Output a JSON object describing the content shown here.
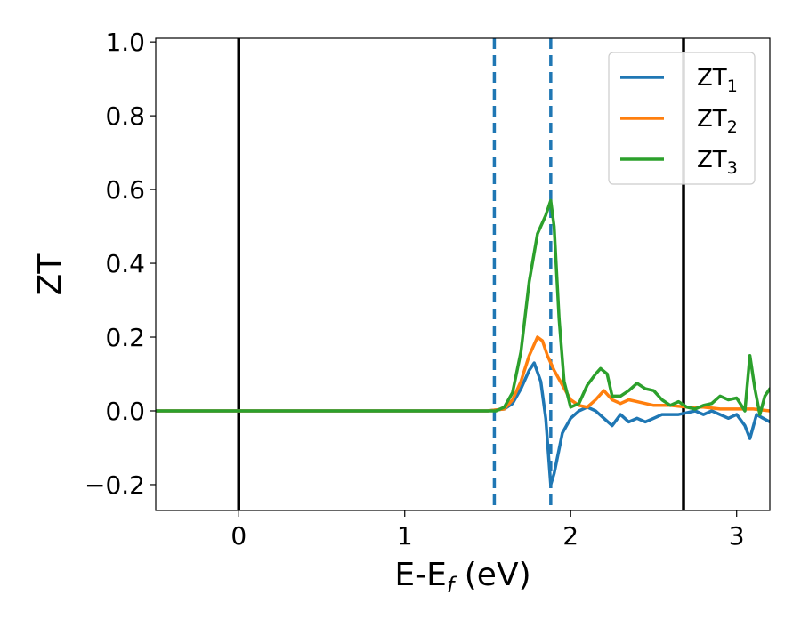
{
  "chart_data": {
    "type": "line",
    "title": "",
    "xlabel": "E-E",
    "xlabel_sub": "f",
    "xlabel_unit": " (eV)",
    "ylabel": "ZT",
    "xlim": [
      -0.5,
      3.2
    ],
    "ylim": [
      -0.27,
      1.01
    ],
    "xticks": [
      0,
      1,
      2,
      3
    ],
    "xtick_labels": [
      "0",
      "1",
      "2",
      "3"
    ],
    "yticks": [
      -0.2,
      0.0,
      0.2,
      0.4,
      0.6,
      0.8,
      1.0
    ],
    "ytick_labels": [
      "−0.2",
      "0.0",
      "0.2",
      "0.4",
      "0.6",
      "0.8",
      "1.0"
    ],
    "grid": false,
    "legend_position": "top-right",
    "vertical_lines": [
      {
        "x": 0.0,
        "style": "solid",
        "color": "#000000"
      },
      {
        "x": 2.68,
        "style": "solid",
        "color": "#000000"
      },
      {
        "x": 1.54,
        "style": "dashed",
        "color": "#1f77b4"
      },
      {
        "x": 1.88,
        "style": "dashed",
        "color": "#1f77b4"
      }
    ],
    "series": [
      {
        "name": "ZT",
        "subscript": "1",
        "color": "#1f77b4",
        "x": [
          -0.5,
          1.5,
          1.6,
          1.65,
          1.7,
          1.75,
          1.78,
          1.82,
          1.85,
          1.88,
          1.9,
          1.95,
          2.0,
          2.05,
          2.1,
          2.15,
          2.2,
          2.25,
          2.3,
          2.35,
          2.4,
          2.45,
          2.5,
          2.55,
          2.6,
          2.65,
          2.7,
          2.75,
          2.8,
          2.85,
          2.9,
          2.95,
          3.0,
          3.05,
          3.08,
          3.12,
          3.16,
          3.2
        ],
        "y": [
          0.0,
          0.0,
          0.005,
          0.02,
          0.06,
          0.11,
          0.13,
          0.08,
          -0.02,
          -0.2,
          -0.17,
          -0.06,
          -0.02,
          0.0,
          0.01,
          0.0,
          -0.02,
          -0.04,
          -0.01,
          -0.03,
          -0.02,
          -0.03,
          -0.02,
          -0.01,
          -0.01,
          -0.01,
          -0.005,
          0.0,
          -0.01,
          0.0,
          -0.01,
          -0.02,
          -0.01,
          -0.04,
          -0.075,
          -0.01,
          -0.02,
          -0.03
        ]
      },
      {
        "name": "ZT",
        "subscript": "2",
        "color": "#ff7f0e",
        "x": [
          -0.5,
          1.5,
          1.6,
          1.65,
          1.7,
          1.75,
          1.8,
          1.83,
          1.86,
          1.9,
          1.95,
          2.0,
          2.05,
          2.1,
          2.15,
          2.2,
          2.25,
          2.3,
          2.35,
          2.4,
          2.45,
          2.5,
          2.55,
          2.6,
          2.7,
          2.8,
          2.9,
          3.0,
          3.1,
          3.2
        ],
        "y": [
          0.0,
          0.0,
          0.005,
          0.03,
          0.08,
          0.15,
          0.2,
          0.19,
          0.15,
          0.11,
          0.07,
          0.03,
          0.015,
          0.01,
          0.03,
          0.055,
          0.03,
          0.02,
          0.03,
          0.025,
          0.02,
          0.015,
          0.015,
          0.015,
          0.01,
          0.01,
          0.005,
          0.005,
          0.005,
          0.0
        ]
      },
      {
        "name": "ZT",
        "subscript": "3",
        "color": "#2ca02c",
        "x": [
          -0.5,
          1.5,
          1.55,
          1.6,
          1.65,
          1.7,
          1.75,
          1.8,
          1.85,
          1.88,
          1.9,
          1.93,
          1.96,
          2.0,
          2.05,
          2.1,
          2.15,
          2.18,
          2.22,
          2.25,
          2.3,
          2.35,
          2.4,
          2.45,
          2.5,
          2.55,
          2.6,
          2.65,
          2.7,
          2.75,
          2.8,
          2.85,
          2.9,
          2.95,
          3.0,
          3.05,
          3.08,
          3.11,
          3.14,
          3.17,
          3.2
        ],
        "y": [
          0.0,
          0.0,
          0.0,
          0.01,
          0.05,
          0.16,
          0.35,
          0.48,
          0.53,
          0.57,
          0.5,
          0.25,
          0.08,
          0.01,
          0.02,
          0.07,
          0.1,
          0.115,
          0.1,
          0.04,
          0.04,
          0.055,
          0.075,
          0.06,
          0.055,
          0.03,
          0.015,
          0.025,
          0.01,
          0.005,
          0.015,
          0.02,
          0.04,
          0.03,
          0.035,
          0.0,
          0.15,
          0.06,
          -0.01,
          0.04,
          0.06
        ]
      }
    ]
  }
}
